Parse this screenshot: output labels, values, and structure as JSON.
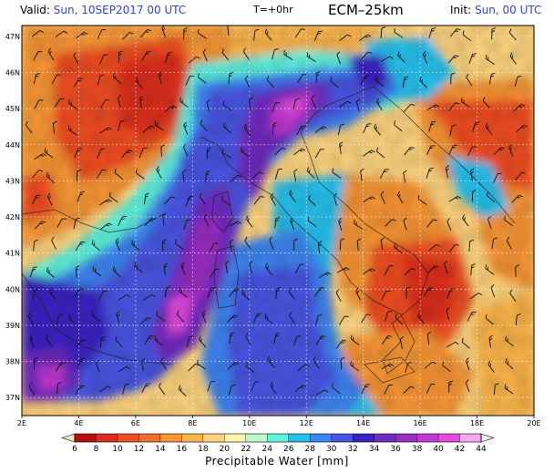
{
  "header": {
    "valid_label": "Valid:",
    "valid_value": "Sun, 10SEP2017   00 UTC",
    "forecast_step": "T=+0hr",
    "model": "ECM–25km",
    "init_label": "Init:",
    "init_value": "Sun, 00 UTC"
  },
  "map": {
    "type": "weather-map",
    "variable": "Precipitable Water",
    "region": "Italy / Central Mediterranean",
    "lon_range": [
      2,
      20
    ],
    "lat_range": [
      36.5,
      47.3
    ],
    "lon_ticks": [
      "2E",
      "4E",
      "6E",
      "8E",
      "10E",
      "12E",
      "14E",
      "16E",
      "18E",
      "20E"
    ],
    "lat_ticks": [
      "37N",
      "38N",
      "39N",
      "40N",
      "41N",
      "42N",
      "43N",
      "44N",
      "45N",
      "46N",
      "47N"
    ],
    "gridlines": "dotted",
    "wind_barbs": true
  },
  "colorbar": {
    "title": "Precipitable Water [mm]",
    "levels": [
      "6",
      "8",
      "10",
      "12",
      "14",
      "16",
      "18",
      "20",
      "22",
      "24",
      "26",
      "28",
      "30",
      "32",
      "34",
      "36",
      "38",
      "40",
      "42",
      "44"
    ],
    "colors": [
      "#f2e2c4",
      "#b50f0f",
      "#dc2d1e",
      "#ef4e24",
      "#f36f2b",
      "#f79534",
      "#fbb448",
      "#fdd37e",
      "#fff5b0",
      "#bff6cc",
      "#5ff2dd",
      "#26c0ec",
      "#3c84f0",
      "#4a54e2",
      "#3a22c2",
      "#6f2cc0",
      "#9a2ec4",
      "#c238d2",
      "#e34be0",
      "#f5a8f0",
      "#fde2fb"
    ]
  }
}
